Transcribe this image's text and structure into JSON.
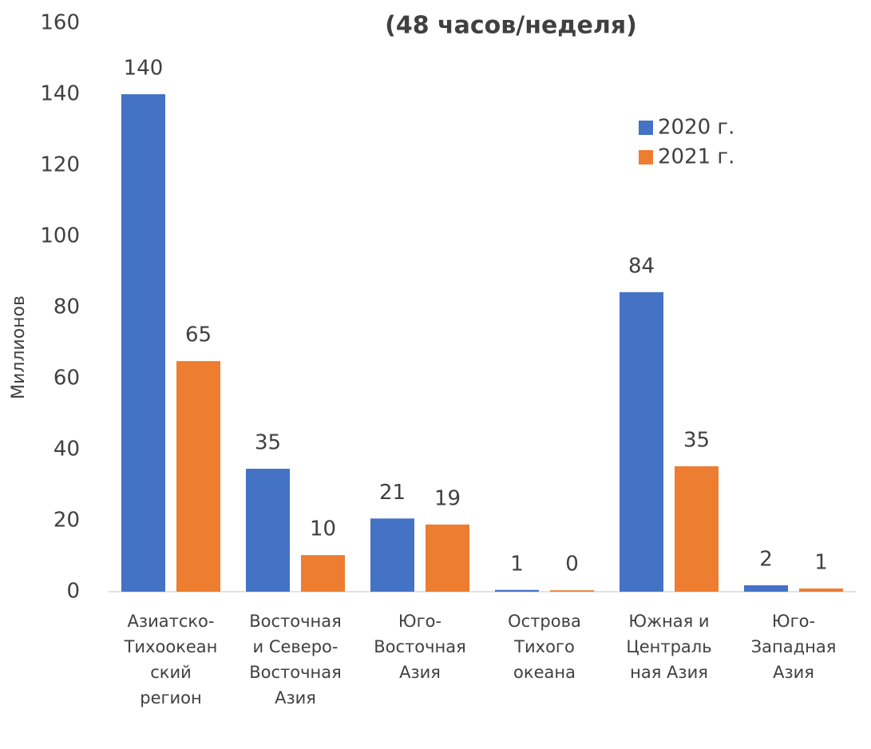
{
  "chart_data": {
    "type": "bar",
    "title": "(48 часов/неделя)",
    "y_label": "Миллионов",
    "categories": [
      "Азиатско-Тихоокеанский регион",
      "Восточная и Северо-Восточная Азия",
      "Юго-Восточная Азия",
      "Острова Тихого океана",
      "Южная и Центральная Азия",
      "Юго-Западная Азия"
    ],
    "series": [
      {
        "name": "2020 г.",
        "color": "#4472c4",
        "values": [
          140,
          34.6,
          20.6,
          0.5,
          84.3,
          1.8
        ],
        "value_labels": [
          "140",
          "35",
          "21",
          "1",
          "84",
          "2"
        ]
      },
      {
        "name": "2021 г.",
        "color": "#ed7d31",
        "values": [
          64.9,
          10.3,
          18.9,
          0.4,
          35.3,
          0.9
        ],
        "value_labels": [
          "65",
          "10",
          "19",
          "0",
          "35",
          "1"
        ]
      }
    ],
    "ylim": [
      0,
      160
    ],
    "yticks": [
      0,
      20,
      40,
      60,
      80,
      100,
      120,
      140,
      160
    ],
    "legend": "upper right"
  }
}
